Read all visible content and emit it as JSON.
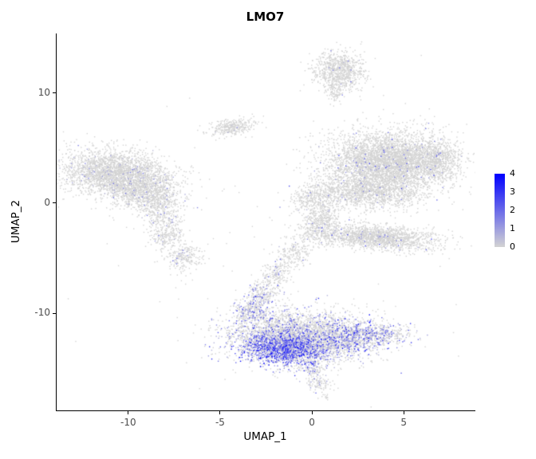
{
  "chart_data": {
    "type": "scatter",
    "title": "LMO7",
    "xlabel": "UMAP_1",
    "ylabel": "UMAP_2",
    "xlim": [
      -13.9,
      8.9
    ],
    "ylim": [
      -18.8,
      15.4
    ],
    "xticks": [
      -10,
      -5,
      0,
      5
    ],
    "yticks": [
      -10,
      0,
      10
    ],
    "grid": false,
    "legend": {
      "position": "right",
      "ticks": [
        4,
        3,
        2,
        1,
        0
      ],
      "min": 0,
      "max": 4
    },
    "colors": {
      "low": "#d3d3d3",
      "high": "#0000ff",
      "axis": "#000000",
      "tick_label": "#4d4d4d",
      "title": "#000000",
      "background": "#ffffff"
    },
    "point_size": 1.4,
    "seed": 1234567,
    "clusters": [
      {
        "name": "left-main",
        "cx": -10.7,
        "cy": 2.7,
        "sdx": 1.5,
        "sdy": 1.05,
        "rot": -12,
        "n": 2600,
        "expr_frac": 0.04,
        "vmax": 2
      },
      {
        "name": "left-lower",
        "cx": -9.0,
        "cy": 0.9,
        "sdx": 1.0,
        "sdy": 0.8,
        "rot": -35,
        "n": 900,
        "expr_frac": 0.05,
        "vmax": 2
      },
      {
        "name": "left-tail",
        "cx": -8.2,
        "cy": -1.2,
        "sdx": 0.5,
        "sdy": 0.85,
        "rot": 10,
        "n": 260,
        "expr_frac": 0.06,
        "vmax": 2
      },
      {
        "name": "left-small-upper",
        "cx": -7.9,
        "cy": -3.1,
        "sdx": 0.42,
        "sdy": 0.5,
        "rot": 0,
        "n": 160,
        "expr_frac": 0.05,
        "vmax": 2
      },
      {
        "name": "left-small-lower",
        "cx": -7.0,
        "cy": -4.9,
        "sdx": 0.52,
        "sdy": 0.62,
        "rot": 0,
        "n": 240,
        "expr_frac": 0.05,
        "vmax": 2
      },
      {
        "name": "upper-left-small",
        "cx": -4.3,
        "cy": 6.9,
        "sdx": 0.62,
        "sdy": 0.35,
        "rot": 15,
        "n": 330,
        "expr_frac": 0.02,
        "vmax": 1.5
      },
      {
        "name": "top",
        "cx": 1.5,
        "cy": 12.0,
        "sdx": 0.68,
        "sdy": 0.9,
        "rot": 0,
        "n": 820,
        "expr_frac": 0.02,
        "vmax": 2
      },
      {
        "name": "top-stem",
        "cx": 1.25,
        "cy": 10.1,
        "sdx": 0.22,
        "sdy": 0.55,
        "rot": 0,
        "n": 90,
        "expr_frac": 0.02,
        "vmax": 1
      },
      {
        "name": "right-main",
        "cx": 4.2,
        "cy": 3.7,
        "sdx": 1.65,
        "sdy": 1.35,
        "rot": 0,
        "n": 4300,
        "expr_frac": 0.025,
        "vmax": 3
      },
      {
        "name": "right-lobe",
        "cx": 6.9,
        "cy": 3.9,
        "sdx": 0.6,
        "sdy": 1.0,
        "rot": 0,
        "n": 520,
        "expr_frac": 0.03,
        "vmax": 3
      },
      {
        "name": "right-bottom",
        "cx": 2.9,
        "cy": 0.9,
        "sdx": 1.5,
        "sdy": 0.7,
        "rot": -5,
        "n": 1200,
        "expr_frac": 0.02,
        "vmax": 2
      },
      {
        "name": "neck-upper",
        "cx": 0.1,
        "cy": 0.3,
        "sdx": 0.6,
        "sdy": 0.7,
        "rot": -20,
        "n": 300,
        "expr_frac": 0.03,
        "vmax": 2
      },
      {
        "name": "neck-lower",
        "cx": 0.6,
        "cy": -1.4,
        "sdx": 0.5,
        "sdy": 0.6,
        "rot": 0,
        "n": 250,
        "expr_frac": 0.04,
        "vmax": 2
      },
      {
        "name": "mid-ellipse",
        "cx": 3.6,
        "cy": -3.1,
        "sdx": 1.65,
        "sdy": 0.55,
        "rot": -7,
        "n": 1650,
        "expr_frac": 0.025,
        "vmax": 3
      },
      {
        "name": "band-1",
        "cx": 0.3,
        "cy": -2.6,
        "sdx": 0.5,
        "sdy": 0.6,
        "rot": 0,
        "n": 200,
        "expr_frac": 0.04,
        "vmax": 2
      },
      {
        "name": "band-2",
        "cx": -1.0,
        "cy": -4.6,
        "sdx": 0.45,
        "sdy": 0.7,
        "rot": 0,
        "n": 180,
        "expr_frac": 0.06,
        "vmax": 2
      },
      {
        "name": "band-3",
        "cx": -2.0,
        "cy": -6.6,
        "sdx": 0.4,
        "sdy": 0.7,
        "rot": 0,
        "n": 180,
        "expr_frac": 0.1,
        "vmax": 2
      },
      {
        "name": "band-4",
        "cx": -2.7,
        "cy": -8.4,
        "sdx": 0.4,
        "sdy": 0.7,
        "rot": 0,
        "n": 220,
        "expr_frac": 0.18,
        "vmax": 3
      },
      {
        "name": "band-5",
        "cx": -3.3,
        "cy": -9.7,
        "sdx": 0.45,
        "sdy": 0.65,
        "rot": 0,
        "n": 260,
        "expr_frac": 0.3,
        "vmax": 3
      },
      {
        "name": "bottom-base",
        "cx": -0.7,
        "cy": -12.1,
        "sdx": 1.9,
        "sdy": 1.2,
        "rot": -4,
        "n": 3200,
        "expr_frac": 0.18,
        "vmax": 3
      },
      {
        "name": "bottom-hotspot",
        "cx": -1.4,
        "cy": -13.2,
        "sdx": 1.2,
        "sdy": 0.75,
        "rot": -4,
        "n": 1500,
        "expr_frac": 0.7,
        "vmax": 4
      },
      {
        "name": "bottom-right",
        "cx": 2.2,
        "cy": -12.1,
        "sdx": 0.9,
        "sdy": 0.7,
        "rot": 0,
        "n": 600,
        "expr_frac": 0.45,
        "vmax": 4
      },
      {
        "name": "bottom-right-tail",
        "cx": 3.9,
        "cy": -11.9,
        "sdx": 0.8,
        "sdy": 0.55,
        "rot": -10,
        "n": 280,
        "expr_frac": 0.3,
        "vmax": 3
      },
      {
        "name": "bottom-stem",
        "cx": 0.1,
        "cy": -15.0,
        "sdx": 0.3,
        "sdy": 0.6,
        "rot": 0,
        "n": 100,
        "expr_frac": 0.2,
        "vmax": 2
      },
      {
        "name": "bottom-small",
        "cx": 0.4,
        "cy": -16.4,
        "sdx": 0.35,
        "sdy": 0.4,
        "rot": 0,
        "n": 90,
        "expr_frac": 0.15,
        "vmax": 2
      },
      {
        "name": "speck",
        "cx": 0.7,
        "cy": -17.6,
        "sdx": 0.15,
        "sdy": 0.15,
        "rot": 0,
        "n": 12,
        "expr_frac": 0.1,
        "vmax": 1
      },
      {
        "name": "sparse-noise",
        "cx": -2.0,
        "cy": -2.0,
        "sdx": 6.5,
        "sdy": 6.5,
        "rot": 0,
        "n": 90,
        "expr_frac": 0.05,
        "vmax": 2
      }
    ]
  }
}
